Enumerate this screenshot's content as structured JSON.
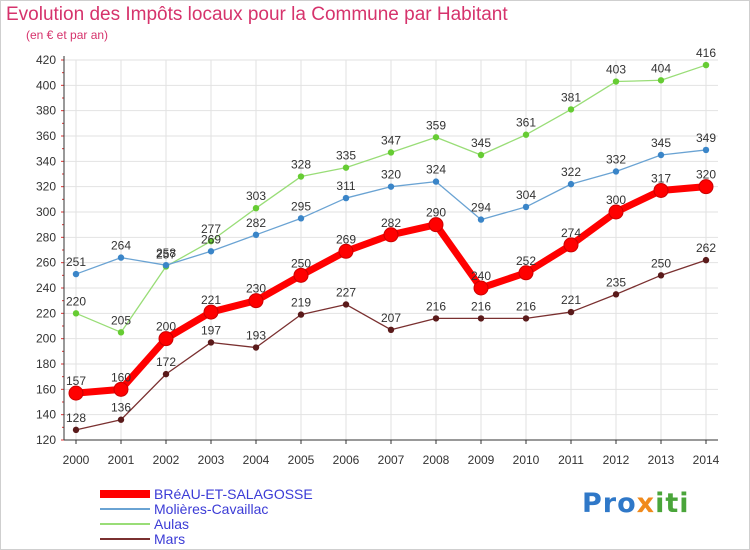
{
  "title": "Evolution des Impôts locaux pour la Commune par Habitant",
  "subtitle": "(en € et par an)",
  "logo_text": "Proxiti",
  "chart_data": {
    "type": "line",
    "x": [
      "2000",
      "2001",
      "2002",
      "2003",
      "2004",
      "2005",
      "2006",
      "2007",
      "2008",
      "2009",
      "2010",
      "2011",
      "2012",
      "2013",
      "2014"
    ],
    "ylim": [
      120,
      420
    ],
    "yticks": [
      120,
      140,
      160,
      180,
      200,
      220,
      240,
      260,
      280,
      300,
      320,
      340,
      360,
      380,
      400,
      420
    ],
    "grid": true,
    "legend_position": "bottom-left",
    "series": [
      {
        "name": "BRéAU-ET-SALAGOSSE",
        "color": "#ff0000",
        "marker_color": "#ff0000",
        "values": [
          157,
          160,
          200,
          221,
          230,
          250,
          269,
          282,
          290,
          240,
          252,
          274,
          300,
          317,
          320
        ]
      },
      {
        "name": "Molières-Cavaillac",
        "color": "#6aa3d3",
        "marker_color": "#3a85c8",
        "values": [
          251,
          264,
          258,
          269,
          282,
          295,
          311,
          320,
          324,
          294,
          304,
          322,
          332,
          345,
          349
        ]
      },
      {
        "name": "Aulas",
        "color": "#99dd77",
        "marker_color": "#66cc33",
        "values": [
          220,
          205,
          257,
          277,
          303,
          328,
          335,
          347,
          359,
          345,
          361,
          381,
          403,
          404,
          416
        ]
      },
      {
        "name": "Mars",
        "color": "#7a3030",
        "marker_color": "#5a1a1a",
        "values": [
          128,
          136,
          172,
          197,
          193,
          219,
          227,
          207,
          216,
          216,
          216,
          221,
          235,
          250,
          262
        ]
      }
    ]
  }
}
